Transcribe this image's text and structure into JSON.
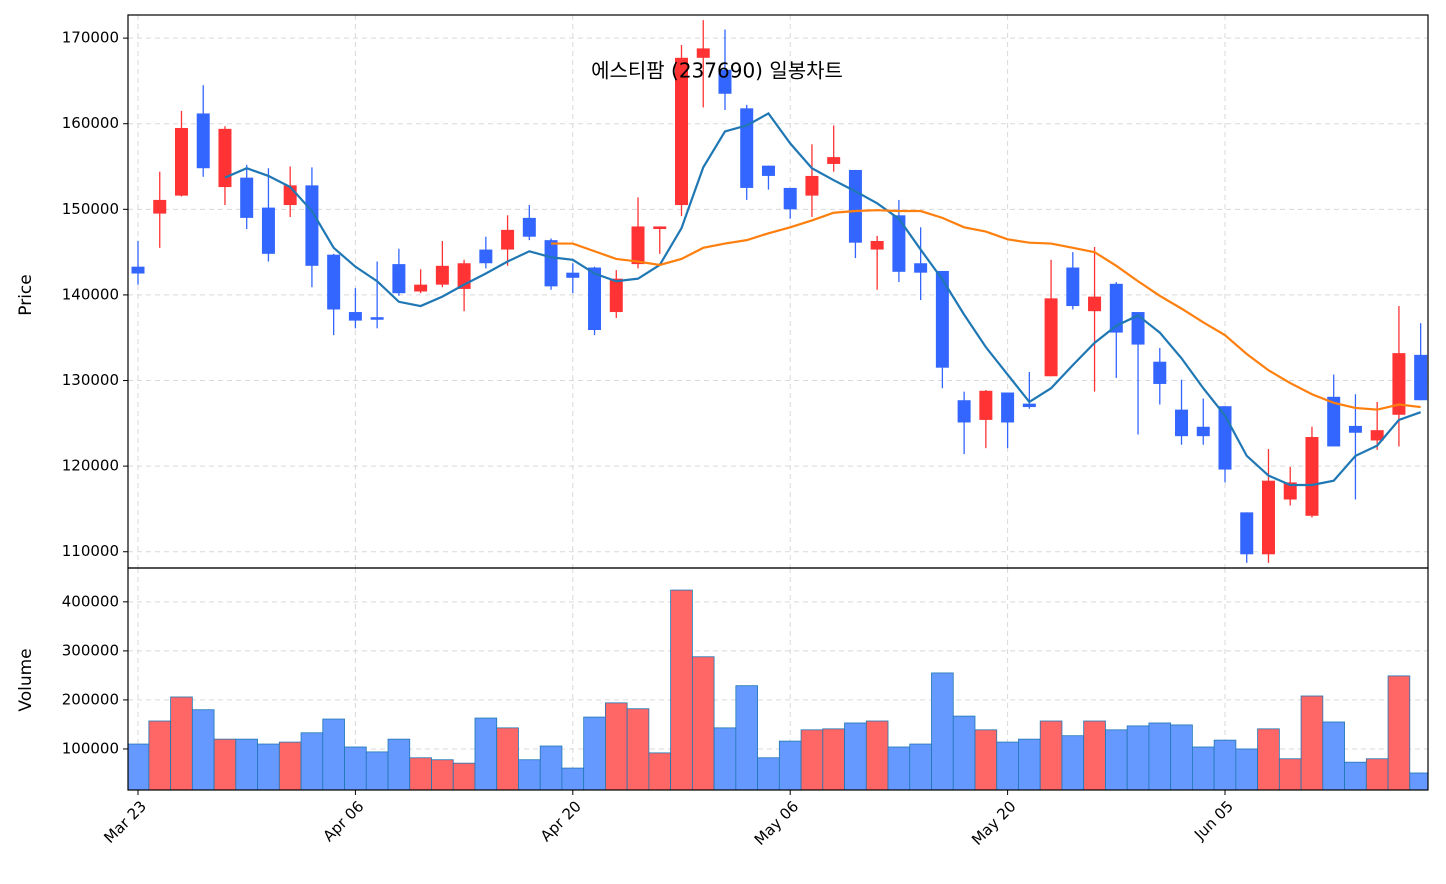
{
  "chart_data": [
    {
      "type": "candlestick",
      "title": "에스티팜 (237690) 일봉차트",
      "ylabel": "Price",
      "open": [
        143300,
        149500,
        151600,
        161200,
        152600,
        153700,
        150200,
        150500,
        152800,
        144700,
        138000,
        137400,
        143600,
        140400,
        141200,
        140700,
        145300,
        145300,
        149000,
        146400,
        142600,
        143200,
        138000,
        143600,
        147700,
        150500,
        167700,
        166300,
        161800,
        155100,
        152500,
        151600,
        155300,
        154600,
        145300,
        149300,
        143700,
        142800,
        127700,
        125400,
        128600,
        127300,
        130500,
        143200,
        138100,
        141300,
        138000,
        132200,
        126600,
        124600,
        127000,
        114600,
        109700,
        116100,
        114200,
        128100,
        124700,
        123000,
        126000,
        133000
      ],
      "high": [
        146300,
        154400,
        161500,
        164500,
        159700,
        155200,
        154800,
        155000,
        154900,
        144800,
        140800,
        143900,
        145400,
        143000,
        146300,
        144100,
        146800,
        149300,
        150500,
        146600,
        143700,
        143300,
        142900,
        151400,
        148000,
        169200,
        172100,
        171000,
        162200,
        155100,
        152500,
        157600,
        159800,
        154600,
        146900,
        151100,
        147900,
        142800,
        128700,
        128900,
        128600,
        131000,
        144100,
        145000,
        145600,
        141500,
        138000,
        133800,
        130100,
        127900,
        127000,
        114600,
        122000,
        119900,
        124600,
        130700,
        128400,
        127500,
        138700,
        136700
      ],
      "low": [
        141200,
        145500,
        151500,
        153800,
        150500,
        147700,
        143900,
        149100,
        140900,
        135300,
        136100,
        136100,
        139900,
        140200,
        140900,
        138100,
        143100,
        143400,
        146400,
        140600,
        140200,
        135300,
        137300,
        143100,
        144800,
        149200,
        161900,
        161600,
        151100,
        152300,
        148900,
        149100,
        154400,
        144300,
        140600,
        141500,
        139400,
        129100,
        121400,
        122100,
        122100,
        126700,
        130500,
        138300,
        128700,
        130300,
        123700,
        127200,
        122500,
        122500,
        118100,
        108700,
        108700,
        115400,
        114000,
        122300,
        116100,
        121900,
        122300,
        127700
      ],
      "close": [
        142500,
        151100,
        159500,
        154800,
        159400,
        149000,
        144800,
        152800,
        143400,
        138300,
        137000,
        137100,
        140200,
        141200,
        143400,
        143700,
        143700,
        147600,
        146800,
        141000,
        142000,
        135900,
        141900,
        148000,
        148000,
        167700,
        168800,
        163500,
        152500,
        153900,
        150000,
        153900,
        156100,
        146100,
        146300,
        142700,
        142600,
        131500,
        125100,
        128800,
        125100,
        126900,
        139600,
        138700,
        139800,
        135600,
        134200,
        129600,
        123500,
        123500,
        119600,
        109700,
        118300,
        118100,
        123400,
        122300,
        123900,
        124200,
        133200,
        127700
      ],
      "up_color": "#ff3333",
      "down_color": "#3366ff",
      "lines": [
        {
          "color": "#1f77b4",
          "values": [
            null,
            null,
            null,
            null,
            153700,
            154800,
            153900,
            152600,
            149800,
            145500,
            143300,
            141600,
            139200,
            138700,
            139800,
            141200,
            142500,
            143900,
            145100,
            144400,
            144100,
            142500,
            141600,
            141900,
            143500,
            147800,
            154900,
            159100,
            159800,
            161200,
            157700,
            154800,
            153400,
            152100,
            150700,
            148900,
            145300,
            141800,
            137700,
            133900,
            130700,
            127500,
            129100,
            131800,
            134400,
            136400,
            137600,
            135600,
            132600,
            129100,
            125900,
            121200,
            118900,
            117800,
            117800,
            118300,
            121200,
            122400,
            125400,
            126300
          ]
        },
        {
          "color": "#ff7f0e",
          "values": [
            null,
            null,
            null,
            null,
            null,
            null,
            null,
            null,
            null,
            null,
            null,
            null,
            null,
            null,
            null,
            null,
            null,
            null,
            null,
            146000,
            146000,
            145100,
            144200,
            143900,
            143500,
            144200,
            145500,
            146000,
            146400,
            147200,
            147900,
            148700,
            149600,
            149800,
            149900,
            149800,
            149800,
            149000,
            147900,
            147400,
            146500,
            146100,
            146000,
            145500,
            145000,
            143400,
            141600,
            139900,
            138400,
            136800,
            135300,
            133100,
            131200,
            129700,
            128400,
            127400,
            126800,
            126600,
            127200,
            126900
          ]
        }
      ],
      "ylim": [
        108100,
        172700
      ],
      "yticks": [
        110000,
        120000,
        130000,
        140000,
        150000,
        160000,
        170000
      ],
      "grid": true
    },
    {
      "type": "bar",
      "ylabel": "Volume",
      "categories": [
        "Mar 23",
        null,
        null,
        null,
        null,
        null,
        null,
        null,
        null,
        null,
        "Apr 06",
        null,
        null,
        null,
        null,
        null,
        null,
        null,
        null,
        null,
        "Apr 20",
        null,
        null,
        null,
        null,
        null,
        null,
        null,
        null,
        null,
        "May 06",
        null,
        null,
        null,
        null,
        null,
        null,
        null,
        null,
        null,
        "May 20",
        null,
        null,
        null,
        null,
        null,
        null,
        null,
        null,
        null,
        "Jun 05",
        null,
        null,
        null,
        null,
        null,
        null,
        null,
        null,
        null
      ],
      "values": [
        110000,
        157000,
        206000,
        180000,
        120000,
        120000,
        110000,
        114000,
        133000,
        161000,
        104000,
        94000,
        120000,
        82000,
        78000,
        71000,
        163000,
        143000,
        78000,
        106000,
        61000,
        165000,
        194000,
        182000,
        92000,
        424000,
        288000,
        143000,
        229000,
        82000,
        116000,
        139000,
        141000,
        153000,
        157000,
        104000,
        110000,
        255000,
        167000,
        139000,
        114000,
        120000,
        157000,
        127000,
        157000,
        139000,
        147000,
        153000,
        149000,
        104000,
        118000,
        100000,
        141000,
        80000,
        208000,
        155000,
        73000,
        80000,
        249000,
        51000
      ],
      "up_color": "#ff6666",
      "down_color": "#6699ff",
      "edge_color": "#1f77b4",
      "ylim": [
        16300,
        469000
      ],
      "yticks": [
        100000,
        200000,
        300000,
        400000
      ],
      "grid": true
    }
  ]
}
